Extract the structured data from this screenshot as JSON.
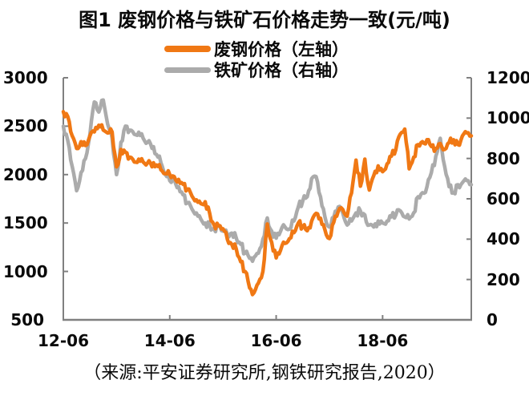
{
  "title": "图1 废钢价格与铁矿石价格走势一致(元/吨)",
  "source_note": "（来源:平安证券研究所,钢铁研究报告,2020）",
  "colors": {
    "scrap": "#F07814",
    "iron": "#ABABAB",
    "axis": "#808080"
  },
  "legend": [
    {
      "label": "废钢价格（左轴）",
      "series": "scrap"
    },
    {
      "label": "铁矿价格（右轴）",
      "series": "iron"
    }
  ],
  "chart_data": {
    "type": "line",
    "x_unit": "months since 2012-06",
    "x_axis": {
      "tick_labels": [
        "12-06",
        "14-06",
        "16-06",
        "18-06"
      ],
      "tick_month_indices": [
        0,
        24,
        48,
        72
      ],
      "total_months": 92
    },
    "left_axis": {
      "min": 500,
      "max": 3000,
      "ticks": [
        3000,
        2500,
        2000,
        1500,
        1000,
        500
      ]
    },
    "right_axis": {
      "min": 0,
      "max": 1200,
      "ticks": [
        1200,
        1000,
        800,
        600,
        400,
        200,
        0
      ]
    },
    "series": [
      {
        "name": "废钢价格（左轴）",
        "axis": "left",
        "color": "#F07814",
        "values": [
          2650,
          2600,
          2400,
          2270,
          2340,
          2300,
          2400,
          2440,
          2510,
          2460,
          2430,
          2440,
          2080,
          2260,
          2230,
          2180,
          2130,
          2160,
          2130,
          2120,
          2080,
          2100,
          2050,
          2010,
          2000,
          1980,
          1950,
          1900,
          1850,
          1780,
          1740,
          1700,
          1720,
          1600,
          1480,
          1470,
          1440,
          1330,
          1280,
          1230,
          1100,
          1000,
          830,
          780,
          880,
          1000,
          1490,
          1300,
          1140,
          1220,
          1290,
          1340,
          1400,
          1500,
          1460,
          1420,
          1520,
          1600,
          1550,
          1430,
          1340,
          1510,
          1620,
          1640,
          1570,
          1810,
          2150,
          1880,
          2160,
          1840,
          1990,
          2090,
          2030,
          2110,
          2190,
          2260,
          2420,
          2470,
          2060,
          2180,
          2310,
          2340,
          2360,
          2290,
          2270,
          2320,
          2260,
          2330,
          2360,
          2310,
          2400,
          2430,
          2400
        ]
      },
      {
        "name": "铁矿价格（右轴）",
        "axis": "right",
        "color": "#ABABAB",
        "values": [
          960,
          890,
          760,
          640,
          730,
          800,
          920,
          1080,
          1030,
          1090,
          970,
          900,
          720,
          880,
          960,
          940,
          920,
          930,
          900,
          880,
          850,
          820,
          780,
          720,
          690,
          700,
          660,
          620,
          580,
          550,
          530,
          500,
          480,
          470,
          450,
          465,
          440,
          420,
          430,
          405,
          375,
          330,
          305,
          310,
          330,
          400,
          505,
          440,
          405,
          440,
          460,
          450,
          490,
          560,
          590,
          610,
          700,
          710,
          610,
          510,
          460,
          510,
          560,
          530,
          470,
          490,
          530,
          540,
          520,
          470,
          460,
          490,
          480,
          490,
          510,
          520,
          540,
          510,
          500,
          530,
          610,
          630,
          660,
          730,
          810,
          900,
          760,
          660,
          630,
          670,
          680,
          690,
          670
        ]
      }
    ]
  }
}
